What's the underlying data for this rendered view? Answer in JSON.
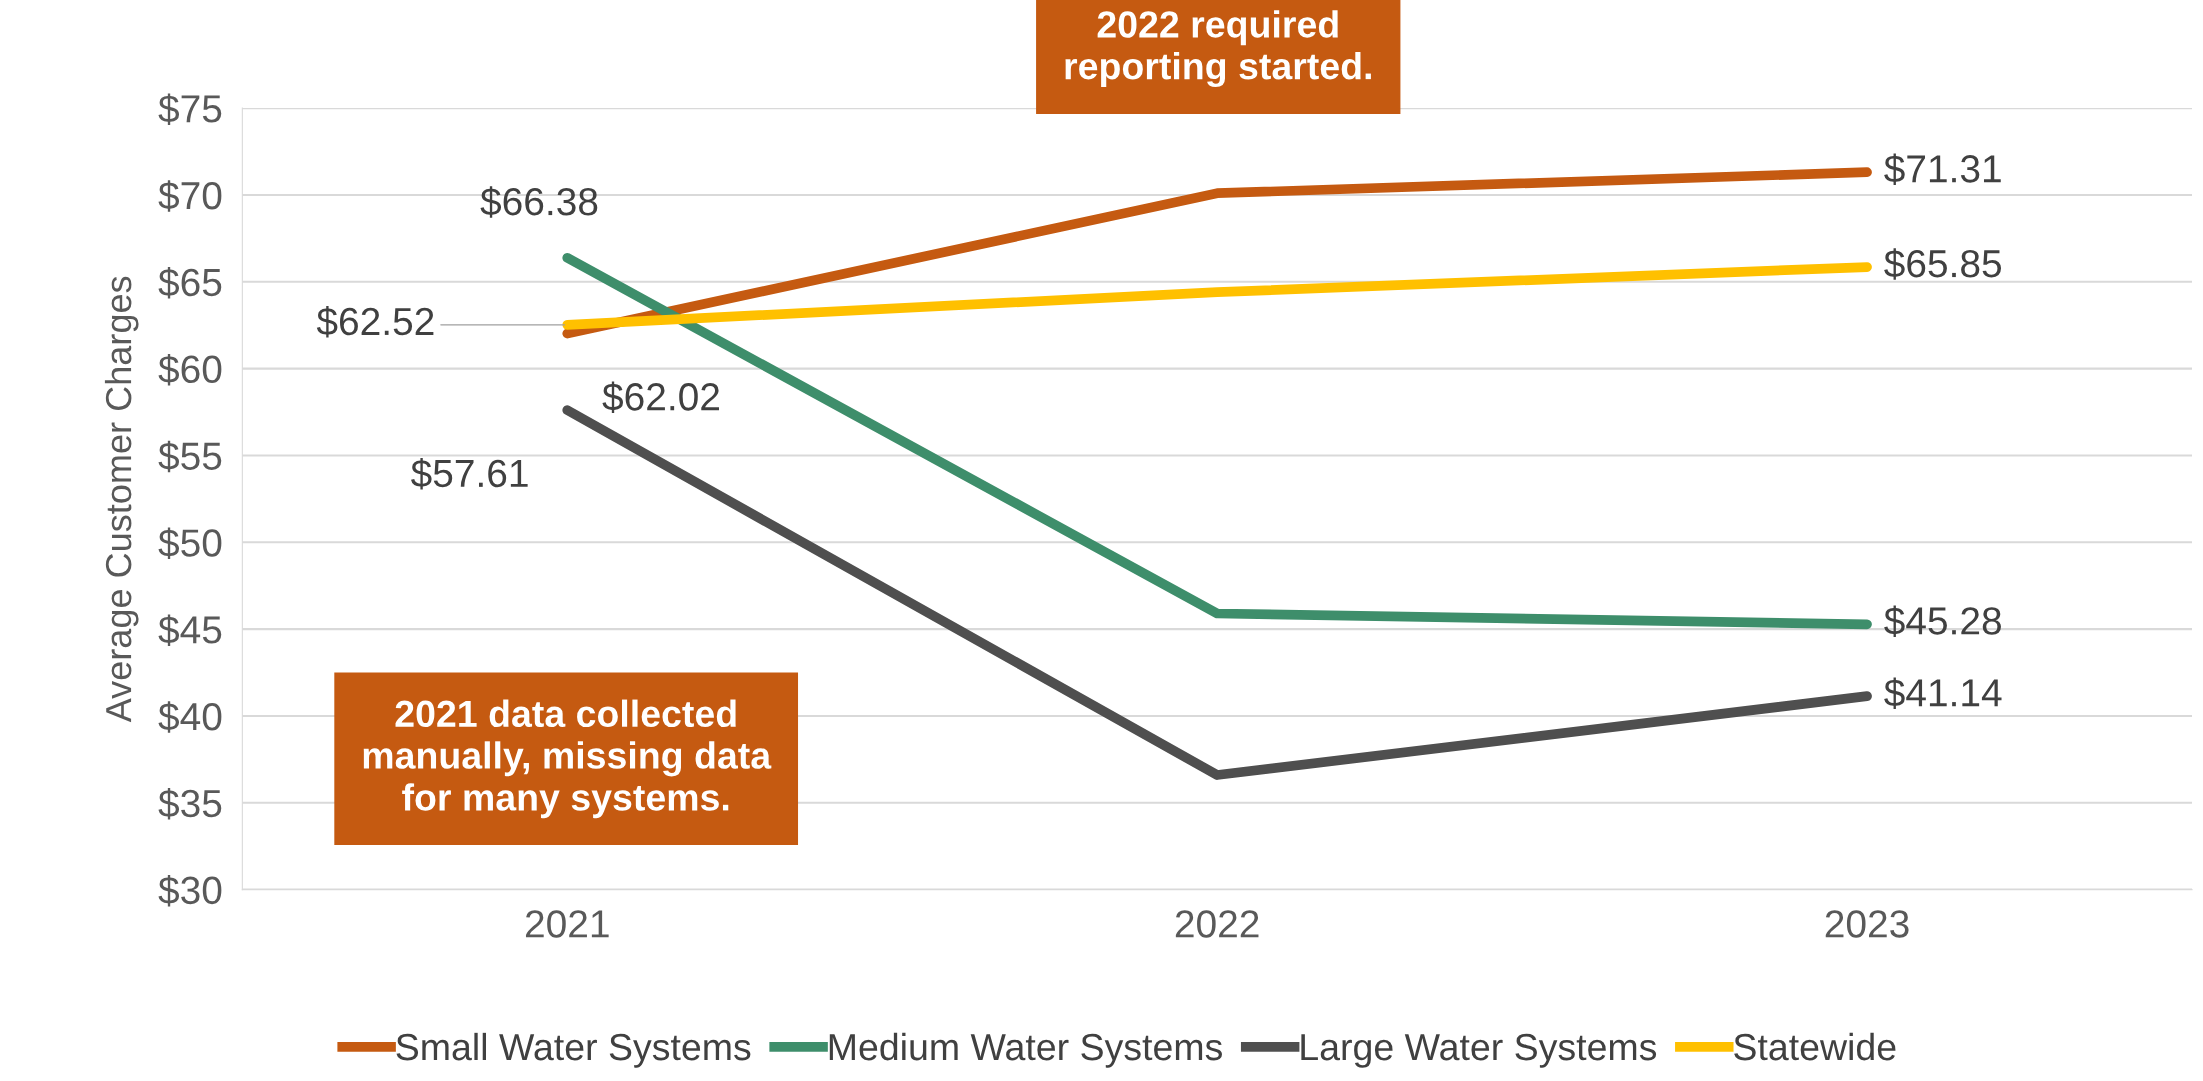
{
  "chart_data": {
    "type": "line",
    "ylabel": "Average Customer Charges",
    "categories": [
      "2021",
      "2022",
      "2023"
    ],
    "series": [
      {
        "name": "Small Water Systems",
        "color": "#c55a11",
        "values": [
          62.02,
          70.1,
          71.31
        ],
        "value_labels": [
          "$62.02",
          null,
          "$71.31"
        ]
      },
      {
        "name": "Medium Water Systems",
        "color": "#3e8e6b",
        "values": [
          66.38,
          45.9,
          45.28
        ],
        "value_labels": [
          "$66.38",
          null,
          "$45.28"
        ]
      },
      {
        "name": "Large Water Systems",
        "color": "#4f4f4f",
        "values": [
          57.61,
          36.6,
          41.14
        ],
        "value_labels": [
          "$57.61",
          null,
          "$41.14"
        ]
      },
      {
        "name": "Statewide",
        "color": "#ffc000",
        "values": [
          62.52,
          64.4,
          65.85
        ],
        "value_labels": [
          "$62.52",
          null,
          "$65.85"
        ]
      }
    ],
    "ylim": [
      30,
      75
    ],
    "yticks": [
      {
        "value": 30,
        "label": "$30"
      },
      {
        "value": 35,
        "label": "$35"
      },
      {
        "value": 40,
        "label": "$40"
      },
      {
        "value": 45,
        "label": "$45"
      },
      {
        "value": 50,
        "label": "$50"
      },
      {
        "value": 55,
        "label": "$55"
      },
      {
        "value": 60,
        "label": "$60"
      },
      {
        "value": 65,
        "label": "$65"
      },
      {
        "value": 70,
        "label": "$70"
      },
      {
        "value": 75,
        "label": "$75"
      }
    ],
    "grid": "y",
    "legend": "bottom",
    "marker": "none",
    "line_style": "solid",
    "annotations": [
      "2022 required\nreporting started.",
      "2021 data collected\nmanually, missing data\nfor many systems."
    ]
  }
}
